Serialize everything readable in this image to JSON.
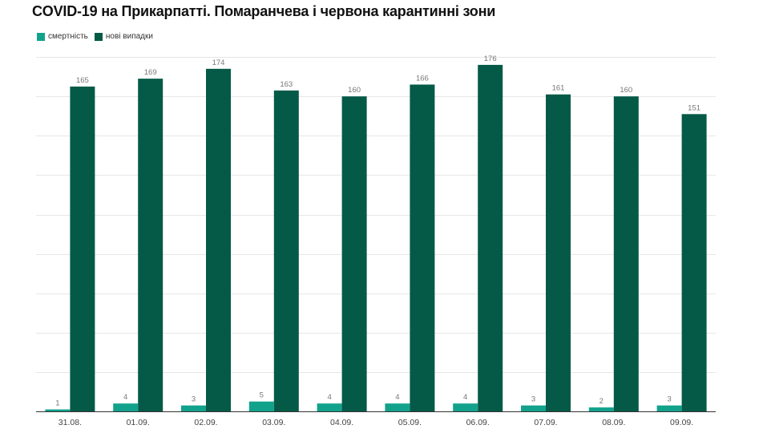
{
  "title": "COVID-19 на Прикарпатті. Помаранчева і червона карантинні зони",
  "legend": [
    {
      "label": "смертність",
      "color": "#12a28c"
    },
    {
      "label": "нові випадки",
      "color": "#045a47"
    }
  ],
  "chart_data": {
    "type": "bar",
    "title": "COVID-19 на Прикарпатті. Помаранчева і червона карантинні зони",
    "xlabel": "",
    "ylabel": "",
    "categories": [
      "31.08.",
      "01.09.",
      "02.09.",
      "03.09.",
      "04.09.",
      "05.09.",
      "06.09.",
      "07.09.",
      "08.09.",
      "09.09."
    ],
    "series": [
      {
        "name": "смертність",
        "color": "#12a28c",
        "values": [
          1,
          4,
          3,
          5,
          4,
          4,
          4,
          3,
          2,
          3
        ]
      },
      {
        "name": "нові випадки",
        "color": "#045a47",
        "values": [
          165,
          169,
          174,
          163,
          160,
          166,
          176,
          161,
          160,
          151
        ]
      }
    ],
    "ylim": [
      0,
      180
    ],
    "grid": true,
    "gridStep": 20,
    "legend_position": "top-left",
    "data_labels": true
  }
}
